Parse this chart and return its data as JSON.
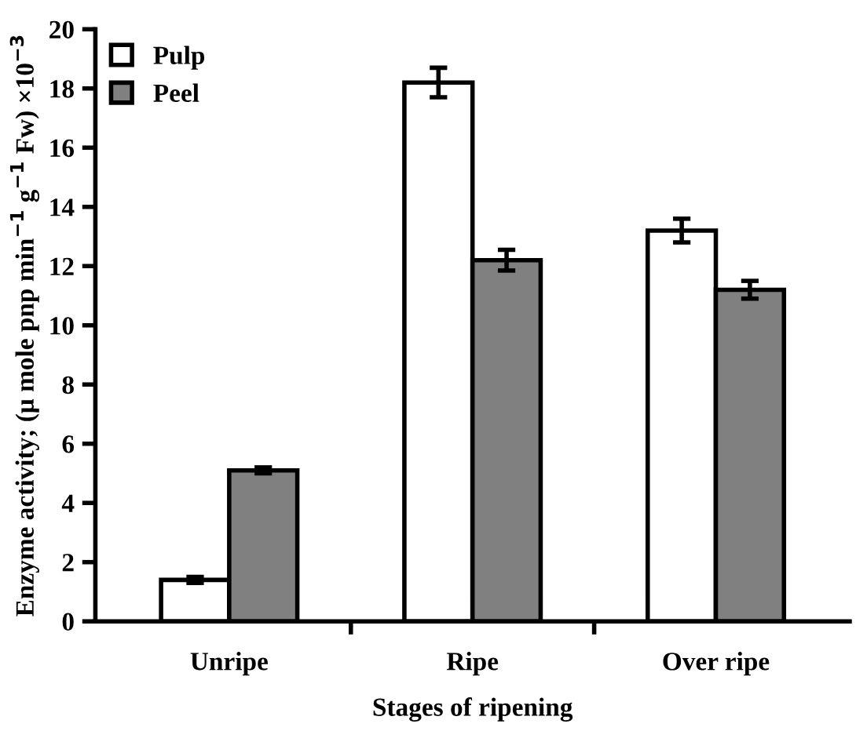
{
  "chart_data": {
    "type": "bar",
    "xlabel": "Stages of ripening",
    "ylabel": "Enzyme activity; (μ mole pnp min$^{−1}$ g$^{−1}$ Fw) ×10$^{−3}$",
    "categories": [
      "Unripe",
      "Ripe",
      "Over ripe"
    ],
    "series": [
      {
        "name": "Pulp",
        "color": "#ffffff",
        "values": [
          1.4,
          18.2,
          13.2
        ],
        "errors": [
          0.1,
          0.5,
          0.4
        ]
      },
      {
        "name": "Peel",
        "color": "#808080",
        "values": [
          5.1,
          12.2,
          11.2
        ],
        "errors": [
          0.1,
          0.35,
          0.3
        ]
      }
    ],
    "ylim": [
      0,
      20
    ],
    "yticks": [
      0,
      2,
      4,
      6,
      8,
      10,
      12,
      14,
      16,
      18,
      20
    ],
    "grid": false,
    "legend": "top left"
  }
}
